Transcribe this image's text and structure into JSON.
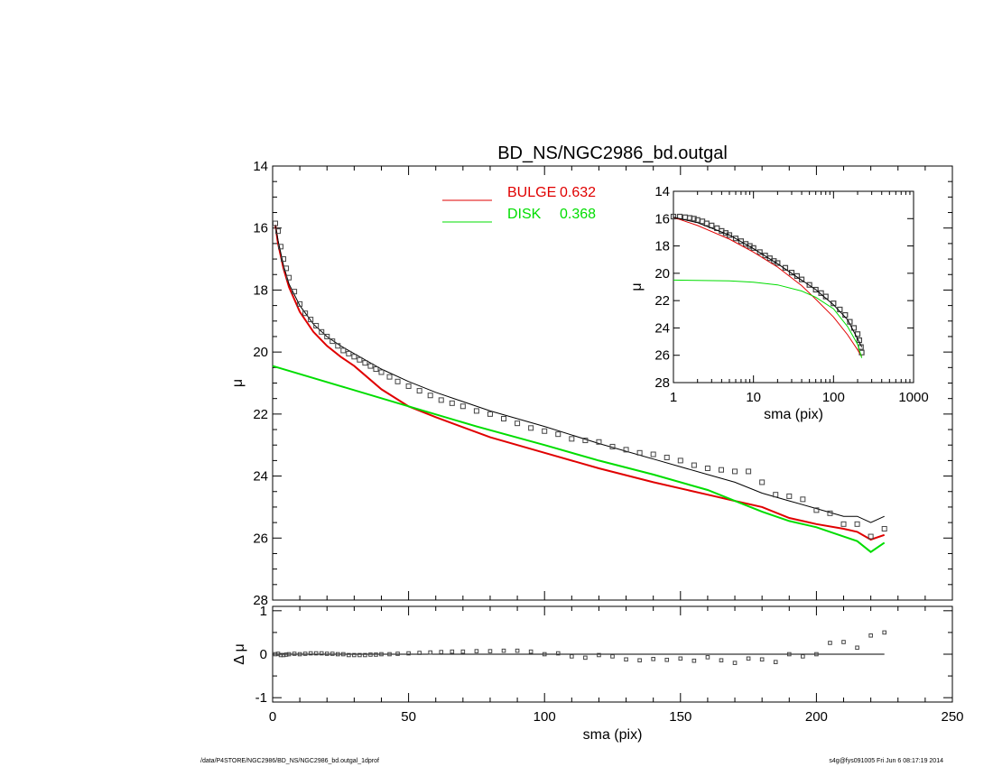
{
  "footer": {
    "path": "/data/P4STORE/NGC2986/BD_NS/NGC2986_bd.outgal_1dprof",
    "stamp": "s4g@fys091005  Fri Jun  6 08:17:19 2014"
  },
  "colors": {
    "bulge": "#e00000",
    "disk": "#00dd00",
    "total": "#000000",
    "points": "#444444"
  },
  "chart_data": [
    {
      "name": "main-profile",
      "type": "line",
      "title": "BD_NS/NGC2986_bd.outgal",
      "xlabel": "",
      "ylabel": "μ",
      "xlim": [
        0,
        250
      ],
      "ylim": [
        28,
        14
      ],
      "yticks": [
        "14",
        "16",
        "18",
        "20",
        "22",
        "24",
        "26",
        "28"
      ],
      "xticks_shown": false,
      "legend": {
        "placement": "top-center",
        "entries": [
          {
            "label": "BULGE",
            "value": "0.632",
            "color": "#e00000"
          },
          {
            "label": "DISK",
            "value": "0.368",
            "color": "#00dd00"
          }
        ]
      },
      "series": [
        {
          "name": "BULGE",
          "color": "#e00000",
          "x": [
            1,
            2,
            4,
            6,
            10,
            15,
            20,
            25,
            30,
            40,
            50,
            60,
            80,
            100,
            120,
            140,
            160,
            170,
            180,
            190,
            200,
            210,
            215,
            220,
            225
          ],
          "y": [
            15.9,
            16.5,
            17.3,
            17.9,
            18.7,
            19.35,
            19.8,
            20.15,
            20.45,
            21.2,
            21.75,
            22.1,
            22.75,
            23.25,
            23.75,
            24.2,
            24.6,
            24.8,
            25.0,
            25.35,
            25.55,
            25.7,
            25.8,
            26.05,
            25.9
          ]
        },
        {
          "name": "DISK",
          "color": "#00dd00",
          "x": [
            0,
            25,
            50,
            75,
            100,
            120,
            140,
            160,
            170,
            180,
            190,
            200,
            210,
            215,
            220,
            225
          ],
          "y": [
            20.45,
            21.1,
            21.75,
            22.4,
            23.0,
            23.5,
            23.95,
            24.45,
            24.8,
            25.15,
            25.45,
            25.65,
            25.95,
            26.1,
            26.45,
            26.15
          ]
        },
        {
          "name": "",
          "color": "#000000",
          "x": [
            1,
            2,
            4,
            6,
            10,
            15,
            20,
            25,
            30,
            40,
            50,
            60,
            80,
            100,
            120,
            140,
            160,
            170,
            180,
            190,
            200,
            210,
            215,
            220,
            225
          ],
          "y": [
            15.9,
            16.4,
            17.2,
            17.8,
            18.5,
            19.1,
            19.5,
            19.8,
            20.05,
            20.55,
            20.95,
            21.3,
            21.9,
            22.4,
            22.95,
            23.45,
            23.95,
            24.2,
            24.55,
            24.8,
            25.05,
            25.3,
            25.3,
            25.5,
            25.3
          ]
        }
      ],
      "points": {
        "name": "data",
        "x": [
          1,
          2,
          3,
          4,
          5,
          6,
          8,
          10,
          12,
          14,
          16,
          18,
          20,
          22,
          24,
          26,
          28,
          30,
          32,
          34,
          36,
          38,
          40,
          43,
          46,
          50,
          54,
          58,
          62,
          66,
          70,
          75,
          80,
          85,
          90,
          95,
          100,
          105,
          110,
          115,
          120,
          125,
          130,
          135,
          140,
          145,
          150,
          155,
          160,
          165,
          170,
          175,
          180,
          185,
          190,
          195,
          200,
          205,
          210,
          215,
          220,
          225
        ],
        "y": [
          15.85,
          16.1,
          16.6,
          17.0,
          17.3,
          17.6,
          18.05,
          18.45,
          18.75,
          18.95,
          19.15,
          19.35,
          19.5,
          19.65,
          19.8,
          19.95,
          20.05,
          20.15,
          20.25,
          20.35,
          20.45,
          20.55,
          20.65,
          20.8,
          20.95,
          21.1,
          21.25,
          21.4,
          21.55,
          21.65,
          21.75,
          21.9,
          22.0,
          22.15,
          22.3,
          22.45,
          22.55,
          22.65,
          22.8,
          22.85,
          22.9,
          23.05,
          23.15,
          23.25,
          23.3,
          23.4,
          23.5,
          23.65,
          23.75,
          23.8,
          23.85,
          23.85,
          24.2,
          24.6,
          24.65,
          24.75,
          25.1,
          25.2,
          25.55,
          25.55,
          25.95,
          25.7
        ]
      }
    },
    {
      "name": "residuals",
      "type": "scatter",
      "xlabel": "sma (pix)",
      "ylabel": "Δ μ",
      "xlim": [
        0,
        250
      ],
      "ylim": [
        -1.1,
        1.1
      ],
      "xticks": [
        "0",
        "50",
        "100",
        "150",
        "200",
        "250"
      ],
      "yticks": [
        "1",
        "0",
        "-1"
      ],
      "zero_line": {
        "x": [
          0,
          225
        ],
        "y": 0
      },
      "points": {
        "x": [
          1,
          2,
          3,
          4,
          5,
          6,
          8,
          10,
          12,
          14,
          16,
          18,
          20,
          22,
          24,
          26,
          28,
          30,
          32,
          34,
          36,
          38,
          40,
          43,
          46,
          50,
          54,
          58,
          62,
          66,
          70,
          75,
          80,
          85,
          90,
          95,
          100,
          105,
          110,
          115,
          120,
          125,
          130,
          135,
          140,
          145,
          150,
          155,
          160,
          165,
          170,
          175,
          180,
          185,
          190,
          195,
          200,
          205,
          210,
          215,
          220,
          225
        ],
        "y": [
          0.0,
          0.01,
          -0.02,
          -0.02,
          -0.01,
          0.0,
          0.01,
          0.0,
          0.01,
          0.02,
          0.02,
          0.02,
          0.01,
          0.01,
          0.0,
          0.0,
          -0.02,
          -0.02,
          -0.02,
          -0.02,
          -0.01,
          -0.01,
          0.0,
          0.0,
          0.01,
          0.02,
          0.03,
          0.04,
          0.05,
          0.06,
          0.06,
          0.07,
          0.07,
          0.08,
          0.08,
          0.06,
          0.0,
          0.02,
          -0.05,
          -0.08,
          -0.02,
          -0.05,
          -0.12,
          -0.14,
          -0.11,
          -0.13,
          -0.1,
          -0.15,
          -0.07,
          -0.14,
          -0.2,
          -0.1,
          -0.12,
          -0.18,
          0.0,
          -0.05,
          0.0,
          0.26,
          0.28,
          0.15,
          0.43,
          0.5
        ]
      }
    },
    {
      "name": "inset-log",
      "type": "line",
      "xlabel": "sma (pix)",
      "ylabel": "μ",
      "xscale": "log",
      "xlim": [
        1,
        1000
      ],
      "ylim": [
        28,
        14
      ],
      "xticks": [
        "1",
        "10",
        "100",
        "1000"
      ],
      "yticks": [
        "14",
        "16",
        "18",
        "20",
        "22",
        "24",
        "26",
        "28"
      ],
      "series": [
        {
          "name": "BULGE",
          "color": "#e00000",
          "x": [
            1,
            2,
            5,
            10,
            20,
            40,
            60,
            100,
            150,
            200,
            225
          ],
          "y": [
            15.9,
            16.5,
            17.5,
            18.45,
            19.55,
            20.9,
            21.9,
            23.2,
            24.5,
            25.6,
            26.1
          ]
        },
        {
          "name": "DISK",
          "color": "#00dd00",
          "x": [
            1,
            5,
            10,
            20,
            40,
            60,
            100,
            150,
            200,
            225
          ],
          "y": [
            20.5,
            20.55,
            20.65,
            20.85,
            21.3,
            21.75,
            22.6,
            23.9,
            25.2,
            26.2
          ]
        },
        {
          "name": "",
          "color": "#000000",
          "x": [
            1,
            2,
            5,
            10,
            20,
            40,
            60,
            100,
            150,
            200,
            225
          ],
          "y": [
            15.9,
            16.3,
            17.2,
            18.2,
            19.3,
            20.5,
            21.2,
            22.3,
            23.4,
            24.8,
            25.4
          ]
        }
      ],
      "points": {
        "x": [
          1,
          1.2,
          1.4,
          1.6,
          1.8,
          2,
          2.3,
          2.6,
          3,
          3.5,
          4,
          4.5,
          5,
          6,
          7,
          8,
          9,
          10,
          12,
          14,
          16,
          18,
          20,
          25,
          30,
          35,
          40,
          50,
          60,
          70,
          80,
          100,
          120,
          140,
          160,
          180,
          200,
          210,
          220,
          225
        ],
        "y": [
          15.85,
          15.85,
          15.9,
          15.95,
          16.0,
          16.1,
          16.2,
          16.35,
          16.5,
          16.7,
          16.9,
          17.05,
          17.2,
          17.45,
          17.65,
          17.85,
          18.0,
          18.15,
          18.45,
          18.7,
          18.9,
          19.1,
          19.25,
          19.6,
          19.95,
          20.2,
          20.45,
          20.85,
          21.2,
          21.45,
          21.7,
          22.2,
          22.65,
          23.05,
          23.55,
          24.0,
          24.45,
          24.9,
          25.4,
          25.8
        ]
      }
    }
  ]
}
